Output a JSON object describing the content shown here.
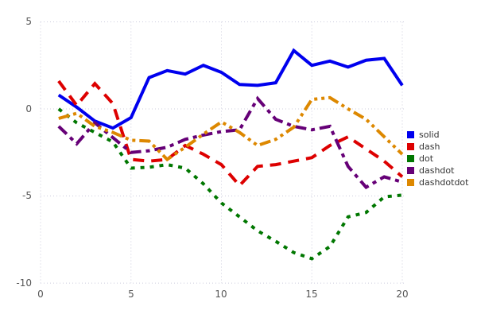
{
  "chart_data": {
    "type": "line",
    "title": "",
    "xlabel": "",
    "ylabel": "",
    "xlim": [
      0,
      20
    ],
    "ylim": [
      -10,
      5
    ],
    "xticks": [
      0,
      5,
      10,
      15,
      20
    ],
    "yticks": [
      5,
      0,
      -5,
      -10
    ],
    "grid": true,
    "grid_style": "dotted",
    "grid_color": "#ccccdd",
    "tick_color": "#555555",
    "background": "#ffffff",
    "legend_position": "right",
    "x": [
      1,
      2,
      3,
      4,
      5,
      6,
      7,
      8,
      9,
      10,
      11,
      12,
      13,
      14,
      15,
      16,
      17,
      18,
      19,
      20
    ],
    "series": [
      {
        "name": "solid",
        "color": "#0000ee",
        "dash": "solid",
        "values": [
          0.8,
          0.1,
          -0.7,
          -1.1,
          -0.5,
          1.8,
          2.2,
          2.0,
          2.5,
          2.1,
          1.4,
          1.35,
          1.5,
          3.35,
          2.5,
          2.75,
          2.4,
          2.8,
          2.9,
          1.35
        ]
      },
      {
        "name": "dash",
        "color": "#dd0000",
        "dash": "dash",
        "values": [
          1.6,
          0.2,
          1.45,
          0.3,
          -2.9,
          -3.0,
          -2.9,
          -2.1,
          -2.6,
          -3.2,
          -4.4,
          -3.3,
          -3.2,
          -3.0,
          -2.8,
          -2.1,
          -1.6,
          -2.3,
          -3.0,
          -3.9
        ]
      },
      {
        "name": "dot",
        "color": "#007700",
        "dash": "dot",
        "values": [
          0.0,
          -0.8,
          -1.35,
          -1.9,
          -3.4,
          -3.35,
          -3.2,
          -3.4,
          -4.3,
          -5.4,
          -6.2,
          -7.0,
          -7.6,
          -8.25,
          -8.6,
          -7.9,
          -6.2,
          -5.95,
          -5.05,
          -4.95
        ]
      },
      {
        "name": "dashdot",
        "color": "#660077",
        "dash": "dashdot",
        "values": [
          -1.0,
          -2.0,
          -0.8,
          -1.65,
          -2.5,
          -2.4,
          -2.2,
          -1.75,
          -1.5,
          -1.3,
          -1.2,
          0.6,
          -0.6,
          -1.0,
          -1.2,
          -1.0,
          -3.3,
          -4.5,
          -3.9,
          -4.2
        ]
      },
      {
        "name": "dashdotdot",
        "color": "#dd8800",
        "dash": "dashdotdot",
        "values": [
          -0.55,
          -0.25,
          -1.0,
          -1.35,
          -1.8,
          -1.85,
          -2.9,
          -2.2,
          -1.45,
          -0.75,
          -1.35,
          -2.1,
          -1.75,
          -1.05,
          0.55,
          0.65,
          0.0,
          -0.6,
          -1.6,
          -2.6
        ]
      }
    ]
  }
}
